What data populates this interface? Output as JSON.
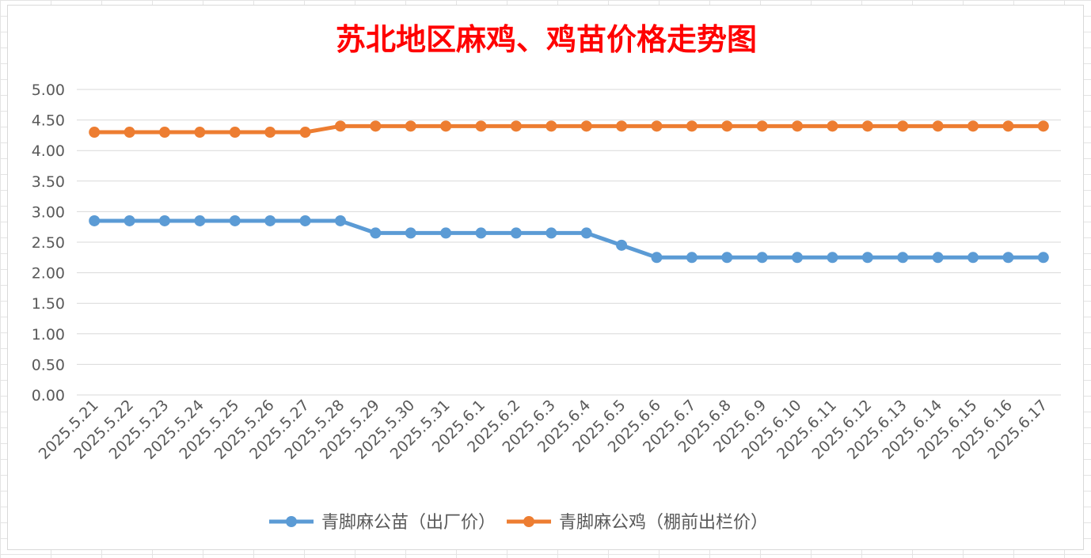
{
  "chart_data": {
    "type": "line",
    "title": "苏北地区麻鸡、鸡苗价格走势图",
    "xlabel": "",
    "ylabel": "",
    "ylim": [
      0,
      5
    ],
    "yticks": [
      "0.00",
      "0.50",
      "1.00",
      "1.50",
      "2.00",
      "2.50",
      "3.00",
      "3.50",
      "4.00",
      "4.50",
      "5.00"
    ],
    "grid": true,
    "legend_position": "bottom",
    "categories": [
      "2025.5.21",
      "2025.5.22",
      "2025.5.23",
      "2025.5.24",
      "2025.5.25",
      "2025.5.26",
      "2025.5.27",
      "2025.5.28",
      "2025.5.29",
      "2025.5.30",
      "2025.5.31",
      "2025.6.1",
      "2025.6.2",
      "2025.6.3",
      "2025.6.4",
      "2025.6.5",
      "2025.6.6",
      "2025.6.7",
      "2025.6.8",
      "2025.6.9",
      "2025.6.10",
      "2025.6.11",
      "2025.6.12",
      "2025.6.13",
      "2025.6.14",
      "2025.6.15",
      "2025.6.16",
      "2025.6.17"
    ],
    "series": [
      {
        "name": "青脚麻公苗（出厂价）",
        "color": "#5b9bd5",
        "values": [
          2.85,
          2.85,
          2.85,
          2.85,
          2.85,
          2.85,
          2.85,
          2.85,
          2.65,
          2.65,
          2.65,
          2.65,
          2.65,
          2.65,
          2.65,
          2.45,
          2.25,
          2.25,
          2.25,
          2.25,
          2.25,
          2.25,
          2.25,
          2.25,
          2.25,
          2.25,
          2.25,
          2.25
        ]
      },
      {
        "name": "青脚麻公鸡（棚前出栏价）",
        "color": "#ed7d31",
        "values": [
          4.3,
          4.3,
          4.3,
          4.3,
          4.3,
          4.3,
          4.3,
          4.4,
          4.4,
          4.4,
          4.4,
          4.4,
          4.4,
          4.4,
          4.4,
          4.4,
          4.4,
          4.4,
          4.4,
          4.4,
          4.4,
          4.4,
          4.4,
          4.4,
          4.4,
          4.4,
          4.4,
          4.4
        ]
      }
    ],
    "title_color": "#ff0000",
    "grid_color": "#d9d9d9"
  }
}
